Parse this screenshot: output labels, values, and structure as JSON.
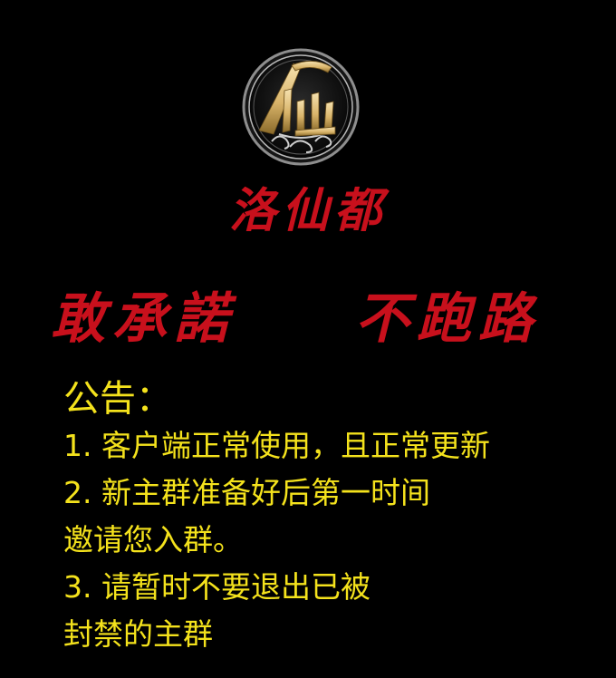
{
  "colors": {
    "background": "#000000",
    "slogan_red": "#c8101c",
    "notice_yellow": "#f4e21c",
    "logo_gold": "#d9b46a"
  },
  "logo": {
    "icon": "xian-emblem-icon",
    "glyph": "仙"
  },
  "title": "洛仙都",
  "slogan": {
    "left": "敢承諾",
    "right": "不跑路"
  },
  "notice": {
    "heading": "公告：",
    "lines": [
      "1. 客户端正常使用，且正常更新",
      "2. 新主群准备好后第一时间",
      "邀请您入群。",
      "3. 请暂时不要退出已被",
      "封禁的主群"
    ]
  }
}
